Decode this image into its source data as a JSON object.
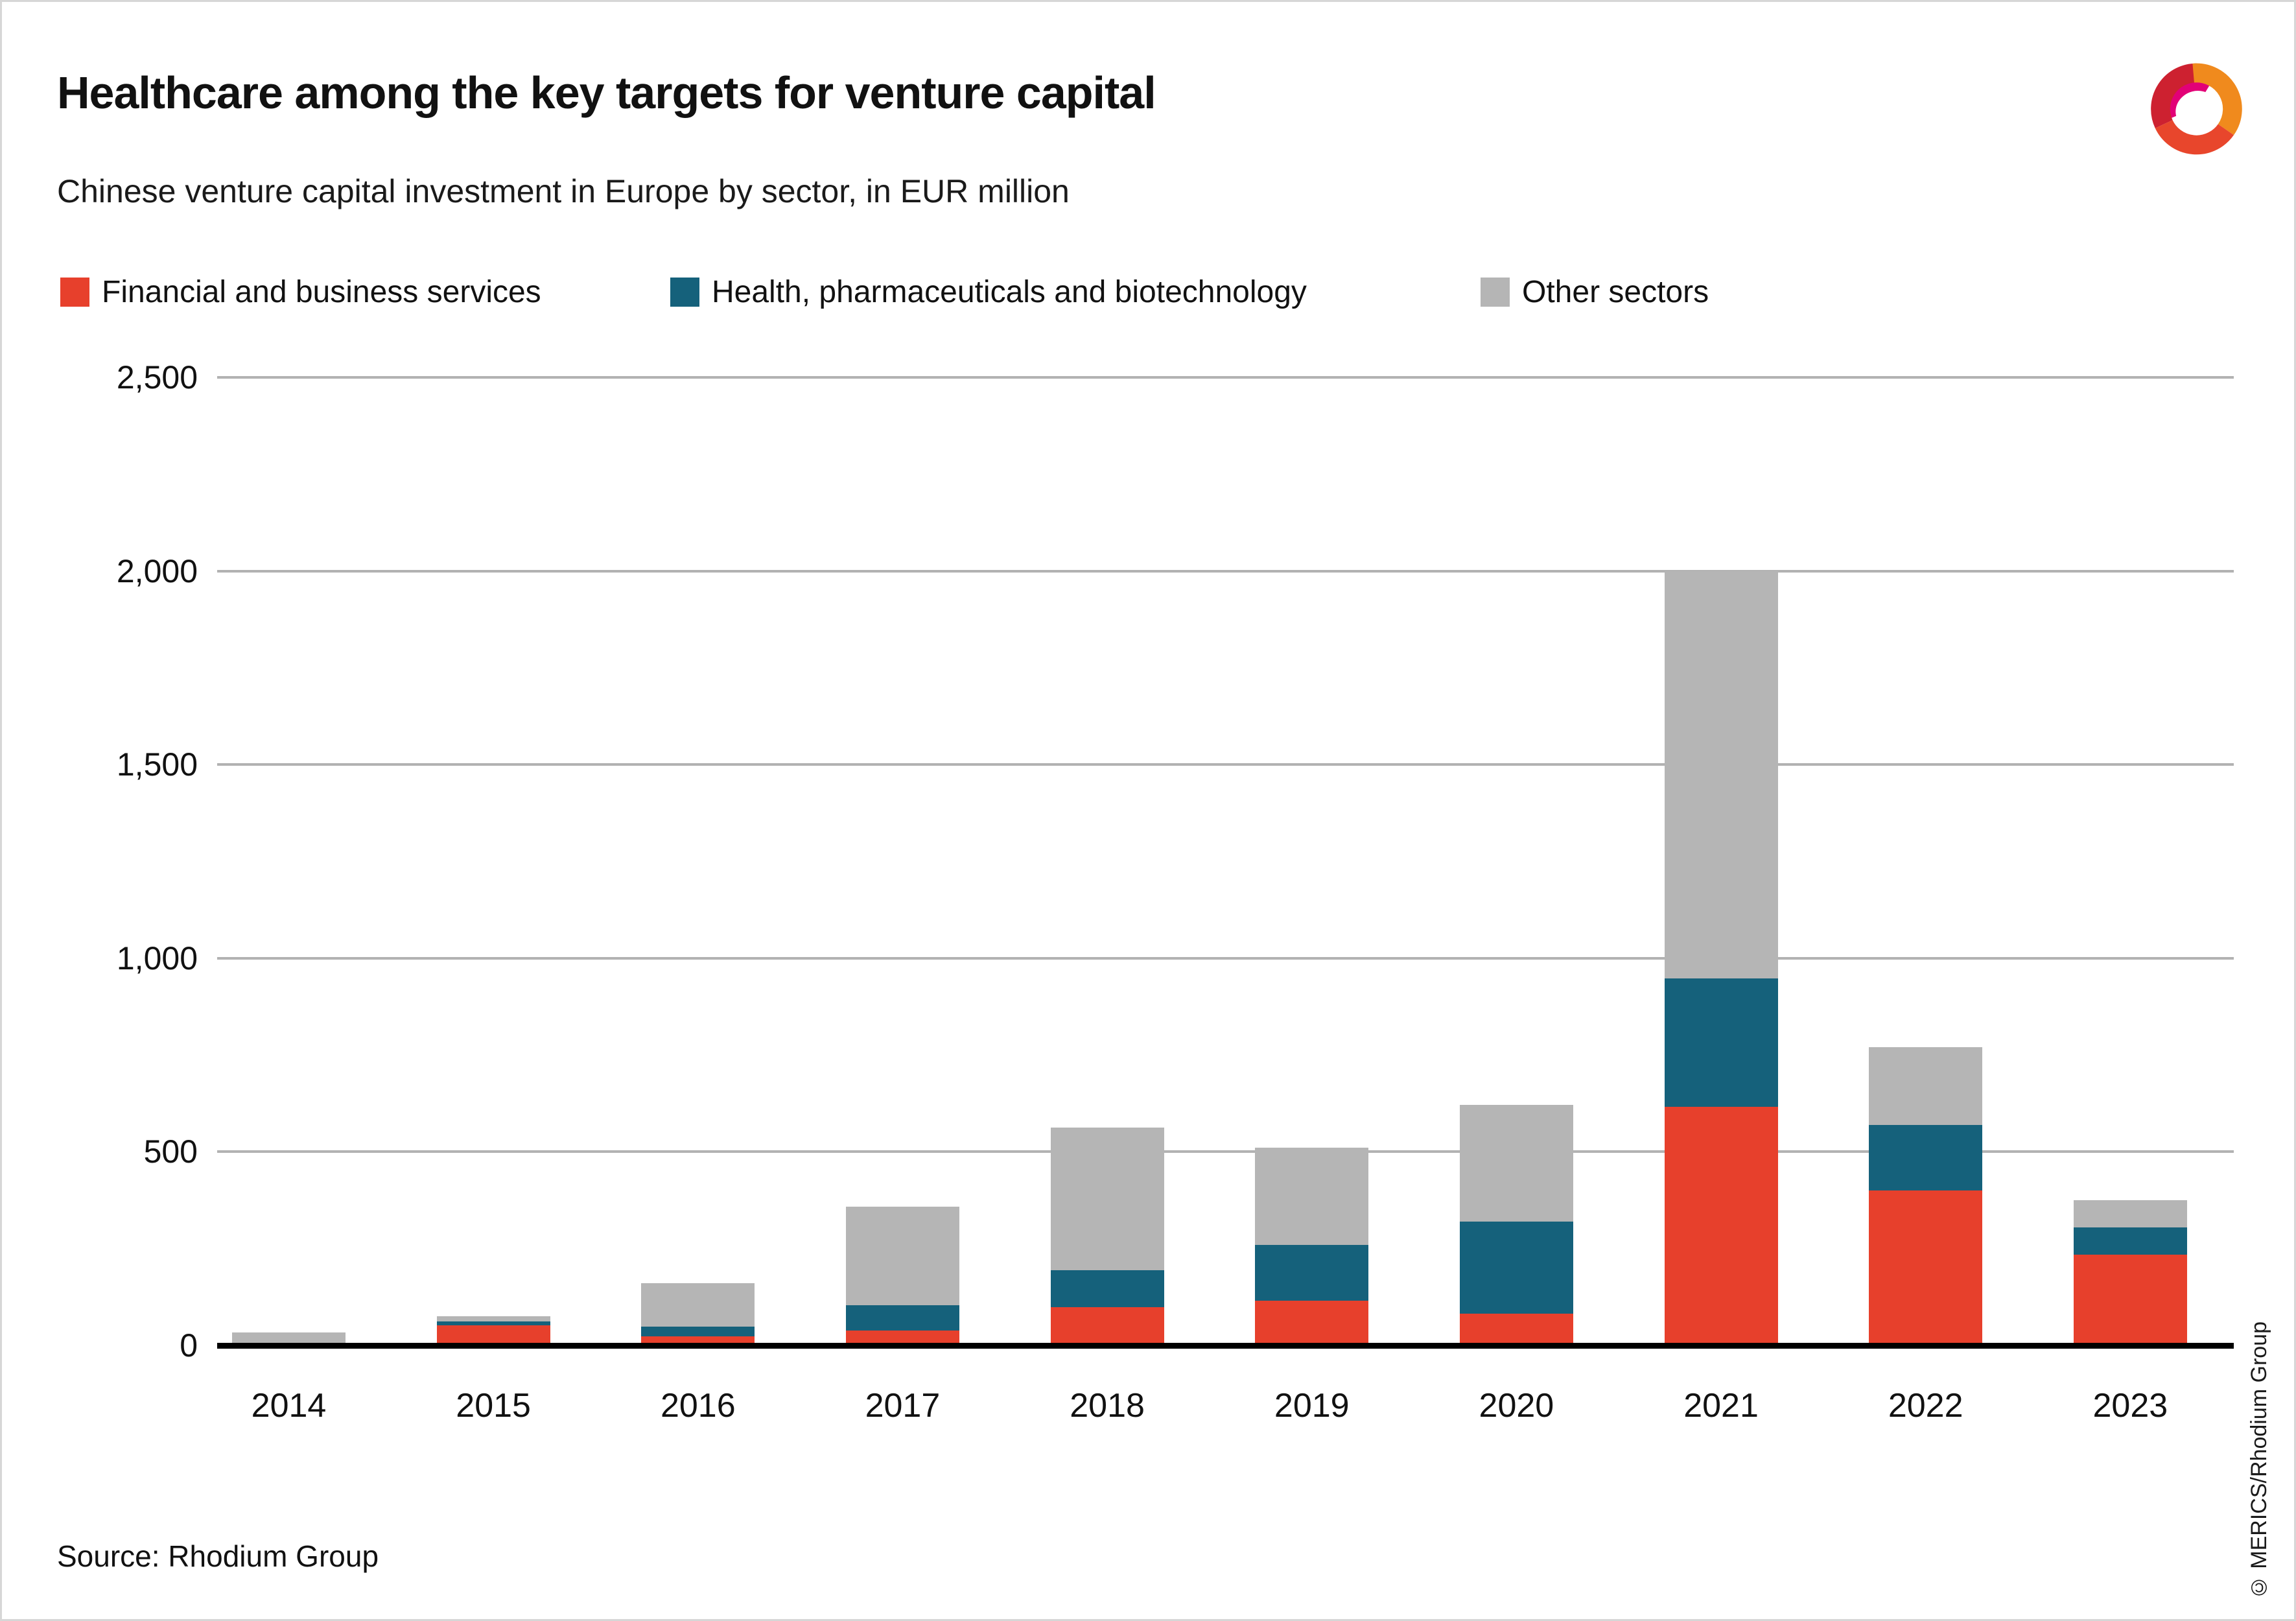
{
  "header": {
    "title": "Healthcare among the key targets for venture capital",
    "subtitle": "Chinese venture capital investment in Europe by sector, in EUR million"
  },
  "legend": [
    {
      "label": "Financial and business services",
      "color": "#e7402c"
    },
    {
      "label": "Health, pharmaceuticals and biotechnology",
      "color": "#15617b"
    },
    {
      "label": "Other sectors",
      "color": "#b5b5b5"
    }
  ],
  "footer": {
    "source": "Source: Rhodium Group",
    "copyright": "© MERICS/Rhodium Group"
  },
  "logo": {
    "name": "merics-logo",
    "colors": {
      "crimson": "#cd2130",
      "orange": "#f08a1d",
      "red_orange": "#e8462c",
      "pink": "#e20177"
    }
  },
  "chart_data": {
    "type": "bar",
    "stacked": true,
    "title": "Healthcare among the key targets for venture capital",
    "subtitle": "Chinese venture capital investment in Europe by sector, in EUR million",
    "categories": [
      "2014",
      "2015",
      "2016",
      "2017",
      "2018",
      "2019",
      "2020",
      "2021",
      "2022",
      "2023"
    ],
    "series": [
      {
        "name": "Financial and business services",
        "color": "#e7402c",
        "values": [
          0,
          52,
          24,
          38,
          98,
          116,
          82,
          617,
          400,
          235
        ]
      },
      {
        "name": "Health, pharmaceuticals and biotechnology",
        "color": "#15617b",
        "values": [
          0,
          10,
          25,
          65,
          96,
          144,
          238,
          331,
          170,
          70
        ]
      },
      {
        "name": "Other sectors",
        "color": "#b5b5b5",
        "values": [
          33,
          13,
          111,
          255,
          369,
          250,
          302,
          1052,
          200,
          70
        ]
      }
    ],
    "totals": [
      33,
      75,
      160,
      358,
      563,
      510,
      622,
      2000,
      770,
      375
    ],
    "xlabel": "",
    "ylabel": "EUR million",
    "ylim": [
      0,
      2500
    ],
    "ytick_interval": 500,
    "ytick_labels": [
      "0",
      "500",
      "1,000",
      "1,500",
      "2,000",
      "2,500"
    ],
    "grid": true,
    "grid_color": "#b2b2b2",
    "legend_position": "top"
  }
}
